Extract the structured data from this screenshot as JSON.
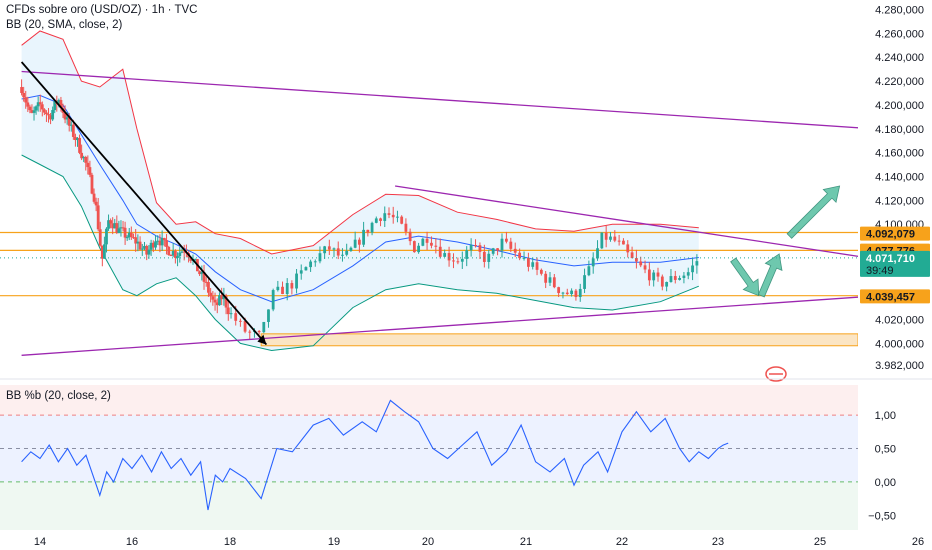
{
  "header": {
    "title": "CFDs sobre oro (USD/OZ) · 1h · TVC",
    "indicator": "BB (20, SMA, close, 2)",
    "sub_indicator": "BB %b (20, close, 2)"
  },
  "colors": {
    "up": "#26a69a",
    "down": "#ef5350",
    "upper_band": "#f23645",
    "basis": "#2962ff",
    "lower_band": "#089981",
    "band_fill": "#e3f2fd",
    "trendline": "#9c27b0",
    "level": "#f7a21b",
    "current": "#22ab94",
    "arrow": "#5fc3a6",
    "pctb": "#2962ff"
  },
  "chart_data": [
    {
      "type": "candlestick",
      "title": "CFDs sobre oro (USD/OZ) · 1h · TVC",
      "x_ticks": [
        "14",
        "16",
        "18",
        "19",
        "20",
        "21",
        "22",
        "23",
        "25",
        "26"
      ],
      "y_ticks": [
        "4.280,000",
        "4.260,000",
        "4.240,000",
        "4.220,000",
        "4.200,000",
        "4.180,000",
        "4.160,000",
        "4.140,000",
        "4.120,000",
        "4.100,000",
        "4.020,000",
        "4.000,000",
        "3.982,000"
      ],
      "ylim": [
        3976,
        4288
      ],
      "price_tags": [
        {
          "label": "4.092,079",
          "value": 4092.079
        },
        {
          "label": "4.077,776",
          "value": 4077.776
        },
        {
          "label": "4.039,457",
          "value": 4039.457
        }
      ],
      "current_price": {
        "label": "4.071,710",
        "countdown": "39:49",
        "value": 4071.71
      },
      "horizontal_levels": [
        4093,
        4078,
        4040
      ],
      "support_zone": [
        3998,
        4008
      ],
      "close_path": [
        {
          "t": 13.6,
          "v": 4215
        },
        {
          "t": 13.8,
          "v": 4190
        },
        {
          "t": 14.0,
          "v": 4200
        },
        {
          "t": 14.2,
          "v": 4190
        },
        {
          "t": 14.4,
          "v": 4205
        },
        {
          "t": 14.6,
          "v": 4185
        },
        {
          "t": 14.8,
          "v": 4170
        },
        {
          "t": 15.0,
          "v": 4150
        },
        {
          "t": 15.2,
          "v": 4120
        },
        {
          "t": 15.35,
          "v": 4070
        },
        {
          "t": 15.5,
          "v": 4105
        },
        {
          "t": 15.7,
          "v": 4095
        },
        {
          "t": 15.9,
          "v": 4090
        },
        {
          "t": 16.1,
          "v": 4085
        },
        {
          "t": 16.3,
          "v": 4075
        },
        {
          "t": 16.5,
          "v": 4090
        },
        {
          "t": 16.7,
          "v": 4080
        },
        {
          "t": 16.9,
          "v": 4075
        },
        {
          "t": 17.1,
          "v": 4080
        },
        {
          "t": 17.3,
          "v": 4065
        },
        {
          "t": 17.5,
          "v": 4050
        },
        {
          "t": 17.7,
          "v": 4030
        },
        {
          "t": 17.85,
          "v": 4040
        },
        {
          "t": 18.0,
          "v": 4025
        },
        {
          "t": 18.15,
          "v": 4010
        },
        {
          "t": 18.3,
          "v": 4005
        },
        {
          "t": 18.4,
          "v": 4040
        },
        {
          "t": 18.6,
          "v": 4050
        },
        {
          "t": 18.8,
          "v": 4070
        },
        {
          "t": 18.95,
          "v": 4080
        },
        {
          "t": 19.1,
          "v": 4070
        },
        {
          "t": 19.3,
          "v": 4090
        },
        {
          "t": 19.45,
          "v": 4105
        },
        {
          "t": 19.55,
          "v": 4110
        },
        {
          "t": 19.7,
          "v": 4100
        },
        {
          "t": 19.85,
          "v": 4080
        },
        {
          "t": 20.0,
          "v": 4090
        },
        {
          "t": 20.15,
          "v": 4075
        },
        {
          "t": 20.3,
          "v": 4070
        },
        {
          "t": 20.45,
          "v": 4080
        },
        {
          "t": 20.6,
          "v": 4070
        },
        {
          "t": 20.75,
          "v": 4085
        },
        {
          "t": 20.9,
          "v": 4075
        },
        {
          "t": 21.05,
          "v": 4065
        },
        {
          "t": 21.2,
          "v": 4055
        },
        {
          "t": 21.35,
          "v": 4045
        },
        {
          "t": 21.5,
          "v": 4040
        },
        {
          "t": 21.65,
          "v": 4060
        },
        {
          "t": 21.8,
          "v": 4090
        },
        {
          "t": 21.95,
          "v": 4085
        },
        {
          "t": 22.1,
          "v": 4070
        },
        {
          "t": 22.25,
          "v": 4060
        },
        {
          "t": 22.4,
          "v": 4050
        },
        {
          "t": 22.55,
          "v": 4055
        },
        {
          "t": 22.7,
          "v": 4060
        },
        {
          "t": 22.8,
          "v": 4071.71
        }
      ],
      "bollinger_upper": [
        {
          "t": 13.6,
          "v": 4250
        },
        {
          "t": 14.0,
          "v": 4262
        },
        {
          "t": 14.5,
          "v": 4255
        },
        {
          "t": 14.9,
          "v": 4220
        },
        {
          "t": 15.3,
          "v": 4215
        },
        {
          "t": 15.8,
          "v": 4230
        },
        {
          "t": 16.1,
          "v": 4180
        },
        {
          "t": 16.5,
          "v": 4118
        },
        {
          "t": 16.9,
          "v": 4100
        },
        {
          "t": 17.3,
          "v": 4102
        },
        {
          "t": 17.7,
          "v": 4092
        },
        {
          "t": 18.1,
          "v": 4088
        },
        {
          "t": 18.4,
          "v": 4075
        },
        {
          "t": 18.8,
          "v": 4082
        },
        {
          "t": 19.2,
          "v": 4108
        },
        {
          "t": 19.55,
          "v": 4125
        },
        {
          "t": 19.9,
          "v": 4124
        },
        {
          "t": 20.3,
          "v": 4110
        },
        {
          "t": 20.7,
          "v": 4104
        },
        {
          "t": 21.1,
          "v": 4096
        },
        {
          "t": 21.5,
          "v": 4094
        },
        {
          "t": 21.9,
          "v": 4100
        },
        {
          "t": 22.4,
          "v": 4100
        },
        {
          "t": 22.8,
          "v": 4097
        }
      ],
      "bollinger_basis": [
        {
          "t": 13.6,
          "v": 4205
        },
        {
          "t": 14.0,
          "v": 4208
        },
        {
          "t": 14.5,
          "v": 4200
        },
        {
          "t": 14.9,
          "v": 4175
        },
        {
          "t": 15.3,
          "v": 4150
        },
        {
          "t": 15.8,
          "v": 4120
        },
        {
          "t": 16.1,
          "v": 4100
        },
        {
          "t": 16.5,
          "v": 4090
        },
        {
          "t": 16.9,
          "v": 4083
        },
        {
          "t": 17.3,
          "v": 4075
        },
        {
          "t": 17.7,
          "v": 4060
        },
        {
          "t": 18.1,
          "v": 4045
        },
        {
          "t": 18.4,
          "v": 4035
        },
        {
          "t": 18.8,
          "v": 4045
        },
        {
          "t": 19.2,
          "v": 4065
        },
        {
          "t": 19.55,
          "v": 4085
        },
        {
          "t": 19.9,
          "v": 4090
        },
        {
          "t": 20.3,
          "v": 4085
        },
        {
          "t": 20.7,
          "v": 4078
        },
        {
          "t": 21.1,
          "v": 4070
        },
        {
          "t": 21.5,
          "v": 4065
        },
        {
          "t": 21.9,
          "v": 4068
        },
        {
          "t": 22.4,
          "v": 4068
        },
        {
          "t": 22.8,
          "v": 4072
        }
      ],
      "bollinger_lower": [
        {
          "t": 13.6,
          "v": 4158
        },
        {
          "t": 14.0,
          "v": 4150
        },
        {
          "t": 14.5,
          "v": 4140
        },
        {
          "t": 14.9,
          "v": 4115
        },
        {
          "t": 15.3,
          "v": 4080
        },
        {
          "t": 15.8,
          "v": 4045
        },
        {
          "t": 16.1,
          "v": 4040
        },
        {
          "t": 16.5,
          "v": 4050
        },
        {
          "t": 16.9,
          "v": 4055
        },
        {
          "t": 17.3,
          "v": 4040
        },
        {
          "t": 17.7,
          "v": 4020
        },
        {
          "t": 18.1,
          "v": 4000
        },
        {
          "t": 18.4,
          "v": 3994
        },
        {
          "t": 18.8,
          "v": 3998
        },
        {
          "t": 19.2,
          "v": 4030
        },
        {
          "t": 19.55,
          "v": 4045
        },
        {
          "t": 19.9,
          "v": 4050
        },
        {
          "t": 20.3,
          "v": 4045
        },
        {
          "t": 20.7,
          "v": 4042
        },
        {
          "t": 21.1,
          "v": 4036
        },
        {
          "t": 21.5,
          "v": 4030
        },
        {
          "t": 21.9,
          "v": 4028
        },
        {
          "t": 22.4,
          "v": 4035
        },
        {
          "t": 22.8,
          "v": 4048
        }
      ],
      "trendlines": [
        {
          "from": {
            "t": 13.6,
            "v": 4228
          },
          "to": {
            "t": 25.9,
            "v": 4178
          },
          "color": "trendline"
        },
        {
          "from": {
            "t": 19.65,
            "v": 4132
          },
          "to": {
            "t": 25.55,
            "v": 4071
          },
          "color": "trendline"
        },
        {
          "from": {
            "t": 13.6,
            "v": 3990
          },
          "to": {
            "t": 26.3,
            "v": 4044
          },
          "color": "trendline"
        },
        {
          "from": {
            "t": 13.6,
            "v": 4236
          },
          "to": {
            "t": 18.35,
            "v": 3999
          },
          "color": "black"
        }
      ],
      "projection_arrows": [
        {
          "from": {
            "t": 23.3,
            "v": 4070
          },
          "to": {
            "t": 23.8,
            "v": 4040
          }
        },
        {
          "from": {
            "t": 23.85,
            "v": 4040
          },
          "to": {
            "t": 24.2,
            "v": 4075
          }
        },
        {
          "from": {
            "t": 24.4,
            "v": 4090
          },
          "to": {
            "t": 25.2,
            "v": 4132
          }
        }
      ]
    },
    {
      "type": "line",
      "title": "BB %b (20, close, 2)",
      "y_ticks": [
        "1,00",
        "0,50",
        "0,00",
        "−0,50"
      ],
      "ylim": [
        -0.72,
        1.45
      ],
      "reference_lines": [
        1.0,
        0.5,
        0.0
      ],
      "series": [
        {
          "values": [
            {
              "t": 13.6,
              "v": 0.3
            },
            {
              "t": 13.8,
              "v": 0.45
            },
            {
              "t": 14.0,
              "v": 0.35
            },
            {
              "t": 14.2,
              "v": 0.55
            },
            {
              "t": 14.4,
              "v": 0.3
            },
            {
              "t": 14.6,
              "v": 0.5
            },
            {
              "t": 14.8,
              "v": 0.25
            },
            {
              "t": 15.0,
              "v": 0.4
            },
            {
              "t": 15.15,
              "v": 0.1
            },
            {
              "t": 15.3,
              "v": -0.2
            },
            {
              "t": 15.45,
              "v": 0.15
            },
            {
              "t": 15.6,
              "v": 0.0
            },
            {
              "t": 15.8,
              "v": 0.35
            },
            {
              "t": 16.0,
              "v": 0.2
            },
            {
              "t": 16.2,
              "v": 0.4
            },
            {
              "t": 16.4,
              "v": 0.15
            },
            {
              "t": 16.6,
              "v": 0.45
            },
            {
              "t": 16.8,
              "v": 0.2
            },
            {
              "t": 17.0,
              "v": 0.35
            },
            {
              "t": 17.2,
              "v": 0.1
            },
            {
              "t": 17.4,
              "v": 0.3
            },
            {
              "t": 17.55,
              "v": -0.42
            },
            {
              "t": 17.7,
              "v": 0.1
            },
            {
              "t": 17.85,
              "v": 0.0
            },
            {
              "t": 18.0,
              "v": 0.2
            },
            {
              "t": 18.15,
              "v": 0.05
            },
            {
              "t": 18.3,
              "v": -0.25
            },
            {
              "t": 18.45,
              "v": 0.5
            },
            {
              "t": 18.6,
              "v": 0.45
            },
            {
              "t": 18.8,
              "v": 0.85
            },
            {
              "t": 18.95,
              "v": 0.95
            },
            {
              "t": 19.1,
              "v": 0.7
            },
            {
              "t": 19.3,
              "v": 0.9
            },
            {
              "t": 19.45,
              "v": 0.75
            },
            {
              "t": 19.6,
              "v": 1.22
            },
            {
              "t": 19.75,
              "v": 1.05
            },
            {
              "t": 19.9,
              "v": 0.9
            },
            {
              "t": 20.05,
              "v": 0.5
            },
            {
              "t": 20.2,
              "v": 0.35
            },
            {
              "t": 20.35,
              "v": 0.55
            },
            {
              "t": 20.5,
              "v": 0.75
            },
            {
              "t": 20.65,
              "v": 0.25
            },
            {
              "t": 20.8,
              "v": 0.45
            },
            {
              "t": 20.95,
              "v": 0.85
            },
            {
              "t": 21.1,
              "v": 0.3
            },
            {
              "t": 21.25,
              "v": 0.15
            },
            {
              "t": 21.4,
              "v": 0.35
            },
            {
              "t": 21.5,
              "v": -0.05
            },
            {
              "t": 21.6,
              "v": 0.25
            },
            {
              "t": 21.75,
              "v": 0.45
            },
            {
              "t": 21.85,
              "v": 0.15
            },
            {
              "t": 22.0,
              "v": 0.75
            },
            {
              "t": 22.15,
              "v": 1.05
            },
            {
              "t": 22.3,
              "v": 0.75
            },
            {
              "t": 22.45,
              "v": 0.95
            },
            {
              "t": 22.6,
              "v": 0.5
            },
            {
              "t": 22.7,
              "v": 0.3
            },
            {
              "t": 22.8,
              "v": 0.45
            },
            {
              "t": 22.9,
              "v": 0.35
            },
            {
              "t": 23.0,
              "v": 0.5
            },
            {
              "t": 23.1,
              "v": 0.55
            },
            {
              "t": 23.2,
              "v": 0.58
            }
          ]
        }
      ]
    }
  ]
}
